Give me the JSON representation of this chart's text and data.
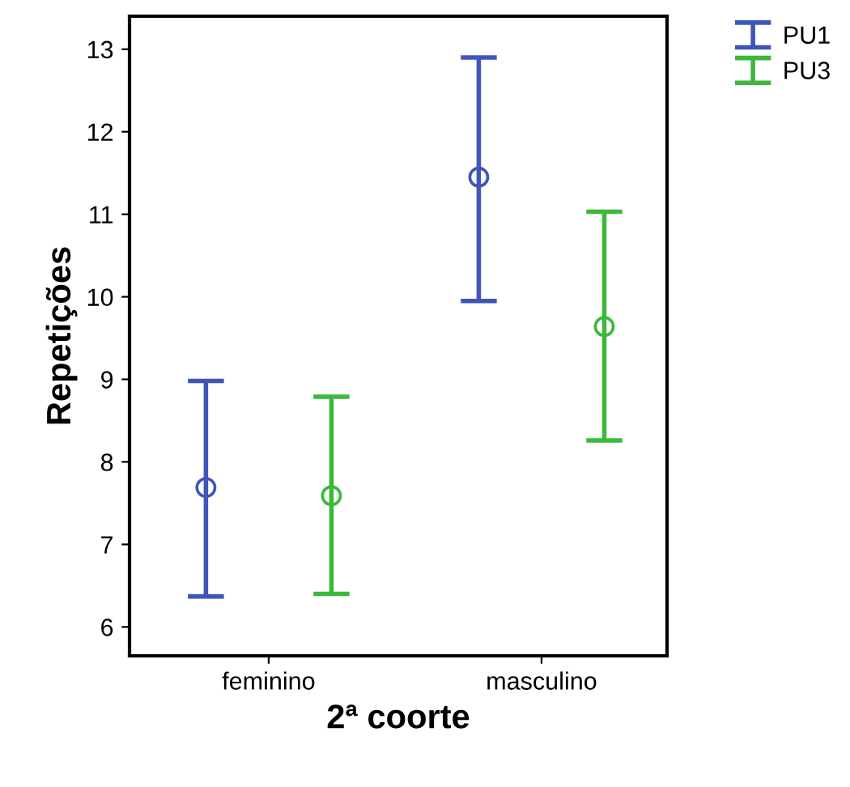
{
  "chart_data": {
    "type": "scatter",
    "xlabel": "2ª coorte",
    "ylabel": "Repetições",
    "categories": [
      "feminino",
      "masculino"
    ],
    "series": [
      {
        "name": "PU1",
        "color": "#4055b8",
        "values": [
          7.69,
          11.45
        ],
        "errors": [
          [
            6.37,
            8.98
          ],
          [
            9.95,
            12.9
          ]
        ]
      },
      {
        "name": "PU3",
        "color": "#3cb83c",
        "values": [
          7.59,
          9.64
        ],
        "errors": [
          [
            6.4,
            8.79
          ],
          [
            8.26,
            11.03
          ]
        ]
      }
    ],
    "ylim": [
      5.65,
      13.4
    ],
    "yticks": [
      6,
      7,
      8,
      9,
      10,
      11,
      12,
      13
    ],
    "grid": false,
    "legend": "top right",
    "marker": "circle"
  }
}
